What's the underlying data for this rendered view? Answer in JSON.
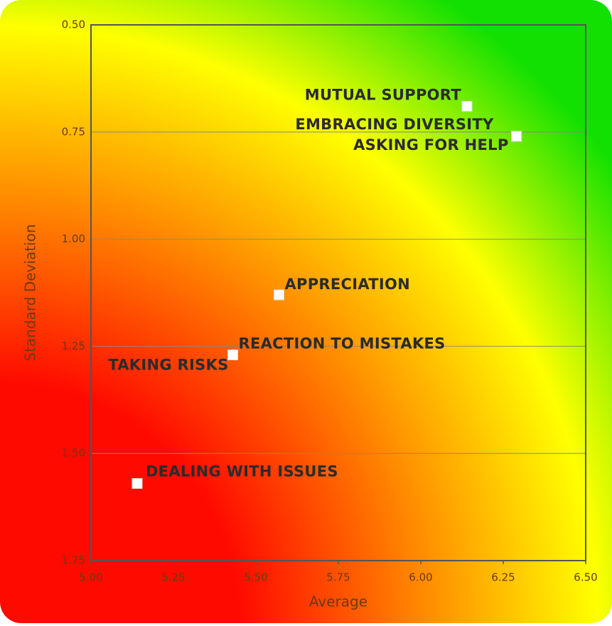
{
  "chart_data": {
    "type": "scatter",
    "x_label": "Average",
    "y_label": "Standard Deviation",
    "labels": [
      "MUTUAL SUPPORT",
      "EMBRACING DIVERSITY",
      "ASKING FOR HELP",
      "APPRECIATION",
      "REACTION TO MISTAKES",
      "TAKING RISKS",
      "DEALING WITH ISSUES"
    ],
    "x": [
      6.14,
      6.29,
      6.29,
      5.57,
      5.43,
      5.43,
      5.14
    ],
    "y": [
      0.69,
      0.76,
      0.76,
      1.13,
      1.27,
      1.27,
      1.57
    ],
    "color": "#ffffff",
    "xlim": [
      5,
      6.5
    ],
    "xticks": [
      {
        "value": 5,
        "label": "5.00"
      },
      {
        "value": 5.25,
        "label": "5.25"
      },
      {
        "value": 5.5,
        "label": "5.50"
      },
      {
        "value": 5.75,
        "label": "5.75"
      },
      {
        "value": 6,
        "label": "6.00"
      },
      {
        "value": 6.25,
        "label": "6.25"
      },
      {
        "value": 6.5,
        "label": "6.50"
      }
    ],
    "ylim": [
      0.5,
      1.75
    ],
    "y_inverted": true,
    "yticks": [
      {
        "value": 0.5,
        "label": "0.50"
      },
      {
        "value": 0.75,
        "label": "0.75"
      },
      {
        "value": 1,
        "label": "1.00"
      },
      {
        "value": 1.25,
        "label": "1.25"
      },
      {
        "value": 1.5,
        "label": "1.50"
      },
      {
        "value": 1.75,
        "label": "1.75"
      }
    ],
    "grid": true
  }
}
